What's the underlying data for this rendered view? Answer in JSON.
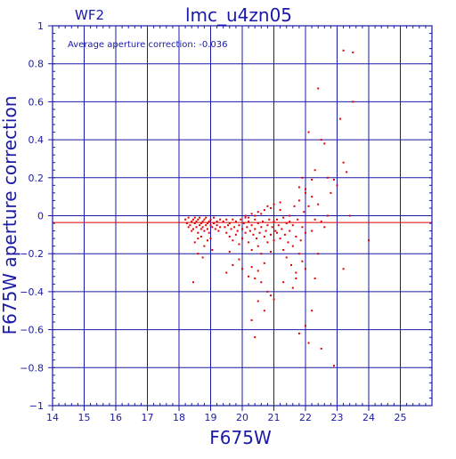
{
  "colors": {
    "axis": "#1a1aa8",
    "grid": "#1a1aa8",
    "points": "#e00000",
    "average_line": "#e00000",
    "background": "#ffffff"
  },
  "chart_data": {
    "type": "scatter",
    "title": "lmc_u4zn05",
    "corner_label": "WF2",
    "annotation": "Average aperture correction: -0.036",
    "xlabel": "F675W",
    "ylabel": "F675W aperture correction",
    "xlim": [
      14,
      26
    ],
    "ylim": [
      -1,
      1
    ],
    "x_ticks": [
      14,
      15,
      16,
      17,
      18,
      19,
      20,
      21,
      22,
      23,
      24,
      25
    ],
    "y_ticks": [
      -1,
      -0.8,
      -0.6,
      -0.4,
      -0.2,
      0,
      0.2,
      0.4,
      0.6,
      0.8,
      1
    ],
    "x_tick_labels": [
      "14",
      "15",
      "16",
      "17",
      "18",
      "19",
      "20",
      "21",
      "22",
      "23",
      "24",
      "25"
    ],
    "y_tick_labels": [
      "−1",
      "−0.8",
      "−0.6",
      "−0.4",
      "−0.2",
      "0",
      "0.2",
      "0.4",
      "0.6",
      "0.8",
      "1"
    ],
    "grid": true,
    "average_value": -0.036,
    "points": [
      [
        18.2,
        -0.02
      ],
      [
        18.25,
        -0.04
      ],
      [
        18.3,
        -0.06
      ],
      [
        18.3,
        -0.01
      ],
      [
        18.35,
        -0.05
      ],
      [
        18.4,
        -0.08
      ],
      [
        18.4,
        -0.03
      ],
      [
        18.45,
        -0.02
      ],
      [
        18.45,
        -0.07
      ],
      [
        18.5,
        -0.04
      ],
      [
        18.5,
        -0.01
      ],
      [
        18.55,
        -0.06
      ],
      [
        18.55,
        -0.03
      ],
      [
        18.6,
        -0.09
      ],
      [
        18.6,
        -0.02
      ],
      [
        18.65,
        -0.05
      ],
      [
        18.65,
        -0.01
      ],
      [
        18.7,
        -0.07
      ],
      [
        18.7,
        -0.04
      ],
      [
        18.75,
        -0.03
      ],
      [
        18.75,
        -0.06
      ],
      [
        18.8,
        -0.02
      ],
      [
        18.8,
        -0.08
      ],
      [
        18.85,
        -0.05
      ],
      [
        18.85,
        -0.01
      ],
      [
        18.9,
        -0.04
      ],
      [
        18.9,
        -0.07
      ],
      [
        18.95,
        -0.03
      ],
      [
        18.95,
        -0.09
      ],
      [
        19.0,
        -0.05
      ],
      [
        19.0,
        -0.02
      ],
      [
        19.05,
        -0.06
      ],
      [
        19.1,
        -0.04
      ],
      [
        19.1,
        -0.01
      ],
      [
        19.15,
        -0.07
      ],
      [
        19.2,
        -0.03
      ],
      [
        19.2,
        -0.05
      ],
      [
        19.25,
        -0.08
      ],
      [
        19.3,
        -0.02
      ],
      [
        19.3,
        -0.06
      ],
      [
        18.6,
        -0.12
      ],
      [
        18.7,
        -0.11
      ],
      [
        18.9,
        -0.13
      ],
      [
        18.5,
        -0.14
      ],
      [
        19.0,
        -0.12
      ],
      [
        18.45,
        -0.35
      ],
      [
        18.6,
        -0.2
      ],
      [
        18.75,
        -0.22
      ],
      [
        19.05,
        -0.18
      ],
      [
        18.8,
        -0.16
      ],
      [
        19.4,
        -0.03
      ],
      [
        19.45,
        -0.06
      ],
      [
        19.5,
        -0.02
      ],
      [
        19.5,
        -0.09
      ],
      [
        19.55,
        -0.05
      ],
      [
        19.6,
        -0.04
      ],
      [
        19.6,
        -0.11
      ],
      [
        19.65,
        -0.07
      ],
      [
        19.7,
        -0.02
      ],
      [
        19.7,
        -0.13
      ],
      [
        19.75,
        -0.06
      ],
      [
        19.8,
        -0.03
      ],
      [
        19.8,
        -0.1
      ],
      [
        19.85,
        -0.08
      ],
      [
        19.9,
        -0.05
      ],
      [
        19.9,
        -0.15
      ],
      [
        19.95,
        -0.02
      ],
      [
        20.0,
        -0.07
      ],
      [
        20.0,
        -0.12
      ],
      [
        20.05,
        -0.04
      ],
      [
        20.1,
        -0.09
      ],
      [
        20.1,
        -0.01
      ],
      [
        20.15,
        -0.06
      ],
      [
        20.2,
        -0.14
      ],
      [
        20.2,
        -0.03
      ],
      [
        20.25,
        -0.08
      ],
      [
        20.3,
        -0.05
      ],
      [
        20.3,
        -0.18
      ],
      [
        20.35,
        -0.1
      ],
      [
        20.4,
        -0.02
      ],
      [
        20.4,
        -0.07
      ],
      [
        20.45,
        -0.12
      ],
      [
        20.5,
        -0.04
      ],
      [
        20.5,
        -0.16
      ],
      [
        20.55,
        -0.09
      ],
      [
        20.6,
        -0.06
      ],
      [
        20.6,
        -0.2
      ],
      [
        20.65,
        -0.03
      ],
      [
        20.7,
        -0.11
      ],
      [
        20.7,
        -0.25
      ],
      [
        20.75,
        -0.08
      ],
      [
        20.8,
        -0.05
      ],
      [
        20.8,
        -0.14
      ],
      [
        20.85,
        -0.02
      ],
      [
        20.9,
        -0.1
      ],
      [
        20.9,
        -0.19
      ],
      [
        20.95,
        -0.06
      ],
      [
        21.0,
        -0.13
      ],
      [
        21.0,
        -0.03
      ],
      [
        21.05,
        -0.08
      ],
      [
        19.6,
        -0.19
      ],
      [
        19.7,
        -0.26
      ],
      [
        19.9,
        -0.23
      ],
      [
        19.5,
        -0.3
      ],
      [
        20.0,
        -0.28
      ],
      [
        20.2,
        -0.32
      ],
      [
        20.3,
        -0.27
      ],
      [
        20.4,
        -0.33
      ],
      [
        20.5,
        -0.29
      ],
      [
        20.6,
        -0.35
      ],
      [
        20.1,
        0.0
      ],
      [
        20.3,
        0.01
      ],
      [
        20.5,
        0.02
      ],
      [
        20.7,
        0.03
      ],
      [
        20.9,
        0.04
      ],
      [
        20.6,
        0.01
      ],
      [
        20.8,
        0.05
      ],
      [
        21.0,
        0.06
      ],
      [
        20.2,
        -0.01
      ],
      [
        20.4,
        0.0
      ],
      [
        21.1,
        -0.02
      ],
      [
        21.1,
        -0.09
      ],
      [
        21.15,
        -0.05
      ],
      [
        21.2,
        -0.12
      ],
      [
        21.2,
        0.03
      ],
      [
        21.25,
        -0.07
      ],
      [
        21.3,
        -0.18
      ],
      [
        21.3,
        -0.01
      ],
      [
        21.35,
        -0.1
      ],
      [
        21.4,
        -0.04
      ],
      [
        21.4,
        -0.22
      ],
      [
        21.45,
        -0.14
      ],
      [
        21.5,
        0.0
      ],
      [
        21.5,
        -0.08
      ],
      [
        21.55,
        -0.26
      ],
      [
        21.6,
        -0.05
      ],
      [
        21.6,
        -0.16
      ],
      [
        21.65,
        0.05
      ],
      [
        21.7,
        -0.11
      ],
      [
        21.7,
        -0.3
      ],
      [
        21.75,
        -0.02
      ],
      [
        21.8,
        -0.2
      ],
      [
        21.8,
        0.08
      ],
      [
        21.85,
        -0.13
      ],
      [
        21.9,
        -0.06
      ],
      [
        21.9,
        -0.24
      ],
      [
        21.95,
        0.02
      ],
      [
        22.0,
        -0.09
      ],
      [
        22.0,
        0.12
      ],
      [
        21.2,
        0.07
      ],
      [
        20.5,
        -0.45
      ],
      [
        20.8,
        -0.4
      ],
      [
        21.0,
        -0.44
      ],
      [
        20.7,
        -0.5
      ],
      [
        20.3,
        -0.55
      ],
      [
        20.4,
        -0.64
      ],
      [
        20.9,
        -0.42
      ],
      [
        21.3,
        -0.35
      ],
      [
        21.6,
        -0.38
      ],
      [
        21.7,
        -0.33
      ],
      [
        21.8,
        -0.62
      ],
      [
        22.0,
        -0.58
      ],
      [
        22.1,
        -0.67
      ],
      [
        22.2,
        -0.5
      ],
      [
        22.5,
        -0.7
      ],
      [
        22.9,
        -0.79
      ],
      [
        23.2,
        -0.28
      ],
      [
        22.3,
        -0.33
      ],
      [
        22.0,
        -0.28
      ],
      [
        22.4,
        -0.2
      ],
      [
        22.0,
        0.14
      ],
      [
        22.1,
        0.44
      ],
      [
        22.2,
        0.19
      ],
      [
        22.3,
        0.24
      ],
      [
        22.4,
        0.67
      ],
      [
        22.5,
        0.4
      ],
      [
        22.6,
        0.38
      ],
      [
        22.7,
        0.2
      ],
      [
        22.9,
        0.19
      ],
      [
        23.0,
        0.16
      ],
      [
        23.1,
        0.51
      ],
      [
        23.2,
        0.87
      ],
      [
        23.2,
        0.28
      ],
      [
        23.3,
        0.23
      ],
      [
        23.5,
        0.86
      ],
      [
        23.5,
        0.6
      ],
      [
        23.4,
        0.0
      ],
      [
        22.8,
        0.12
      ],
      [
        22.6,
        -0.06
      ],
      [
        22.5,
        -0.03
      ],
      [
        22.2,
        -0.08
      ],
      [
        22.3,
        -0.02
      ],
      [
        22.1,
        0.05
      ],
      [
        22.2,
        0.1
      ],
      [
        22.4,
        0.06
      ],
      [
        21.9,
        0.2
      ],
      [
        21.8,
        0.15
      ],
      [
        24.0,
        -0.13
      ],
      [
        22.7,
        0.0
      ],
      [
        21.5,
        -0.03
      ]
    ]
  }
}
